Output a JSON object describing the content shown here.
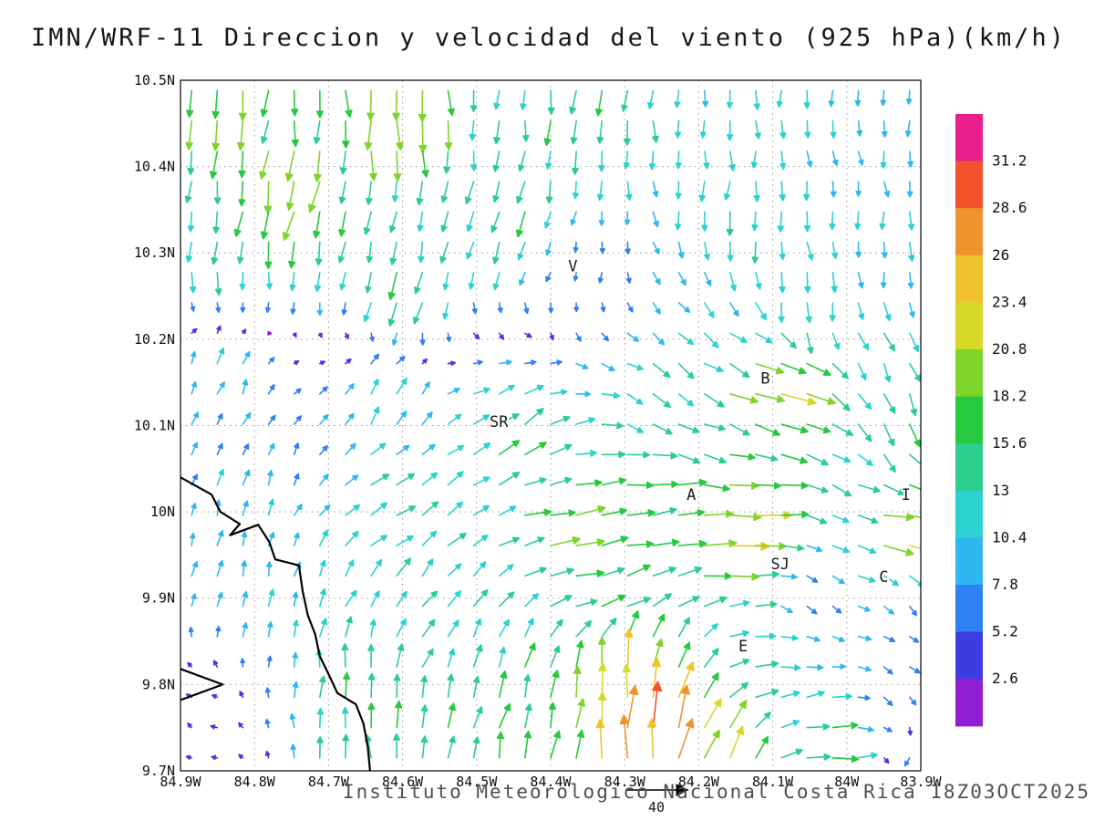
{
  "title": "IMN/WRF-11 Direccion y velocidad del viento (925 hPa)(km/h)",
  "footer": {
    "text": "Instituto Meteorologico Nacional Costa Rica 18Z03OCT2025"
  },
  "chart_data": {
    "type": "quiver",
    "title": "IMN/WRF-11 Direccion y velocidad del viento (925 hPa)(km/h)",
    "xlabel": "",
    "ylabel": "",
    "units": "km/h",
    "level": "925 hPa",
    "lon_range_w": [
      84.9,
      83.9
    ],
    "lat_range": [
      9.7,
      10.5
    ],
    "x_ticks": [
      {
        "label": "84.9W",
        "lon_w": 84.9
      },
      {
        "label": "84.8W",
        "lon_w": 84.8
      },
      {
        "label": "84.7W",
        "lon_w": 84.7
      },
      {
        "label": "84.6W",
        "lon_w": 84.6
      },
      {
        "label": "84.5W",
        "lon_w": 84.5
      },
      {
        "label": "84.4W",
        "lon_w": 84.4
      },
      {
        "label": "84.3W",
        "lon_w": 84.3
      },
      {
        "label": "84.2W",
        "lon_w": 84.2
      },
      {
        "label": "84.1W",
        "lon_w": 84.1
      },
      {
        "label": "84W",
        "lon_w": 84.0
      },
      {
        "label": "83.9W",
        "lon_w": 83.9
      }
    ],
    "y_ticks": [
      {
        "label": "10.5N",
        "lat": 10.5
      },
      {
        "label": "10.4N",
        "lat": 10.4
      },
      {
        "label": "10.3N",
        "lat": 10.3
      },
      {
        "label": "10.2N",
        "lat": 10.2
      },
      {
        "label": "10.1N",
        "lat": 10.1
      },
      {
        "label": "10N",
        "lat": 10.0
      },
      {
        "label": "9.9N",
        "lat": 9.9
      },
      {
        "label": "9.8N",
        "lat": 9.8
      },
      {
        "label": "9.7N",
        "lat": 9.7
      }
    ],
    "colorbar": {
      "levels": [
        2.6,
        5.2,
        7.8,
        10.4,
        13,
        15.6,
        18.2,
        20.8,
        23.4,
        26,
        28.6,
        31.2
      ],
      "labels_top_to_bottom": [
        "31.2",
        "28.6",
        "26",
        "23.4",
        "20.8",
        "18.2",
        "15.6",
        "13",
        "10.4",
        "7.8",
        "5.2",
        "2.6"
      ],
      "colors_low_to_high": [
        "#8f1fd0",
        "#3c3ce0",
        "#2f80f2",
        "#2fb8f0",
        "#2bd2cf",
        "#2bce8f",
        "#27c93f",
        "#7fd42a",
        "#d8d829",
        "#f0c22e",
        "#f0932c",
        "#f2522c",
        "#ea1f8f"
      ]
    },
    "reference_vector": {
      "label": "40",
      "speed_kmh": 40
    },
    "stations": [
      {
        "label": "V",
        "lon_w": 84.37,
        "lat": 10.285
      },
      {
        "label": "B",
        "lon_w": 84.11,
        "lat": 10.155
      },
      {
        "label": "SR",
        "lon_w": 84.47,
        "lat": 10.105
      },
      {
        "label": "A",
        "lon_w": 84.21,
        "lat": 10.02
      },
      {
        "label": "SJ",
        "lon_w": 84.09,
        "lat": 9.94
      },
      {
        "label": "C",
        "lon_w": 83.95,
        "lat": 9.925
      },
      {
        "label": "E",
        "lon_w": 84.14,
        "lat": 9.845
      },
      {
        "label": "I",
        "lon_w": 83.92,
        "lat": 10.02
      }
    ],
    "coastline": [
      [
        [
          84.9,
          10.04
        ],
        [
          84.858,
          10.02
        ],
        [
          84.846,
          10.0
        ],
        [
          84.82,
          9.986
        ],
        [
          84.833,
          9.973
        ],
        [
          84.795,
          9.985
        ],
        [
          84.78,
          9.965
        ],
        [
          84.772,
          9.945
        ],
        [
          84.74,
          9.938
        ],
        [
          84.735,
          9.908
        ],
        [
          84.728,
          9.88
        ],
        [
          84.718,
          9.858
        ],
        [
          84.712,
          9.833
        ],
        [
          84.7,
          9.812
        ],
        [
          84.688,
          9.79
        ],
        [
          84.663,
          9.777
        ],
        [
          84.653,
          9.755
        ],
        [
          84.647,
          9.728
        ],
        [
          84.644,
          9.7
        ]
      ],
      [
        [
          84.9,
          9.818
        ],
        [
          84.843,
          9.8
        ],
        [
          84.9,
          9.782
        ]
      ]
    ],
    "grid": {
      "nx": 29,
      "ny": 23,
      "lon_w_start": 84.885,
      "lon_w_end": 83.915,
      "lat_start": 9.715,
      "lat_end": 10.488
    },
    "wind_samples": [
      {
        "lon_w": 84.85,
        "lat": 10.47,
        "dir_to": 185,
        "speed": 18
      },
      {
        "lon_w": 84.6,
        "lat": 10.47,
        "dir_to": 178,
        "speed": 20
      },
      {
        "lon_w": 84.35,
        "lat": 10.47,
        "dir_to": 188,
        "speed": 16
      },
      {
        "lon_w": 84.1,
        "lat": 10.47,
        "dir_to": 182,
        "speed": 12
      },
      {
        "lon_w": 83.93,
        "lat": 10.47,
        "dir_to": 180,
        "speed": 9
      },
      {
        "lon_w": 84.75,
        "lat": 10.36,
        "dir_to": 192,
        "speed": 21
      },
      {
        "lon_w": 84.45,
        "lat": 10.34,
        "dir_to": 200,
        "speed": 16
      },
      {
        "lon_w": 84.15,
        "lat": 10.36,
        "dir_to": 185,
        "speed": 14
      },
      {
        "lon_w": 83.94,
        "lat": 10.33,
        "dir_to": 178,
        "speed": 11
      },
      {
        "lon_w": 84.85,
        "lat": 10.3,
        "dir_to": 185,
        "speed": 14
      },
      {
        "lon_w": 84.6,
        "lat": 10.26,
        "dir_to": 196,
        "speed": 18
      },
      {
        "lon_w": 84.38,
        "lat": 10.28,
        "dir_to": 205,
        "speed": 6
      },
      {
        "lon_w": 84.05,
        "lat": 10.25,
        "dir_to": 182,
        "speed": 13
      },
      {
        "lon_w": 84.85,
        "lat": 10.16,
        "dir_to": 20,
        "speed": 10
      },
      {
        "lon_w": 84.62,
        "lat": 10.13,
        "dir_to": 28,
        "speed": 13
      },
      {
        "lon_w": 84.45,
        "lat": 10.09,
        "dir_to": 55,
        "speed": 16
      },
      {
        "lon_w": 84.25,
        "lat": 10.13,
        "dir_to": 130,
        "speed": 14
      },
      {
        "lon_w": 84.1,
        "lat": 10.14,
        "dir_to": 110,
        "speed": 22
      },
      {
        "lon_w": 83.93,
        "lat": 10.12,
        "dir_to": 160,
        "speed": 15
      },
      {
        "lon_w": 84.82,
        "lat": 10.01,
        "dir_to": 15,
        "speed": 10
      },
      {
        "lon_w": 84.6,
        "lat": 9.99,
        "dir_to": 60,
        "speed": 15
      },
      {
        "lon_w": 84.38,
        "lat": 9.98,
        "dir_to": 85,
        "speed": 19
      },
      {
        "lon_w": 84.28,
        "lat": 10.02,
        "dir_to": 85,
        "speed": 18
      },
      {
        "lon_w": 84.15,
        "lat": 9.97,
        "dir_to": 92,
        "speed": 25
      },
      {
        "lon_w": 83.92,
        "lat": 9.97,
        "dir_to": 100,
        "speed": 22
      },
      {
        "lon_w": 84.82,
        "lat": 9.9,
        "dir_to": 8,
        "speed": 11
      },
      {
        "lon_w": 84.58,
        "lat": 9.9,
        "dir_to": 40,
        "speed": 13
      },
      {
        "lon_w": 84.33,
        "lat": 9.91,
        "dir_to": 80,
        "speed": 17
      },
      {
        "lon_w": 84.05,
        "lat": 9.89,
        "dir_to": 140,
        "speed": 7
      },
      {
        "lon_w": 83.92,
        "lat": 9.9,
        "dir_to": 150,
        "speed": 7
      },
      {
        "lon_w": 84.86,
        "lat": 9.79,
        "dir_to": 300,
        "speed": 4
      },
      {
        "lon_w": 84.66,
        "lat": 9.8,
        "dir_to": 3,
        "speed": 15
      },
      {
        "lon_w": 84.47,
        "lat": 9.79,
        "dir_to": 15,
        "speed": 15
      },
      {
        "lon_w": 84.31,
        "lat": 9.81,
        "dir_to": 355,
        "speed": 23
      },
      {
        "lon_w": 84.12,
        "lat": 9.82,
        "dir_to": 85,
        "speed": 15
      },
      {
        "lon_w": 83.94,
        "lat": 9.79,
        "dir_to": 130,
        "speed": 7
      },
      {
        "lon_w": 84.85,
        "lat": 9.72,
        "dir_to": 280,
        "speed": 4
      },
      {
        "lon_w": 84.63,
        "lat": 9.72,
        "dir_to": 358,
        "speed": 17
      },
      {
        "lon_w": 84.43,
        "lat": 9.72,
        "dir_to": 10,
        "speed": 18
      },
      {
        "lon_w": 84.29,
        "lat": 9.73,
        "dir_to": 0,
        "speed": 29
      },
      {
        "lon_w": 84.25,
        "lat": 9.75,
        "dir_to": 8,
        "speed": 30
      },
      {
        "lon_w": 84.17,
        "lat": 9.73,
        "dir_to": 30,
        "speed": 20
      },
      {
        "lon_w": 84.02,
        "lat": 9.73,
        "dir_to": 85,
        "speed": 17
      },
      {
        "lon_w": 83.91,
        "lat": 9.72,
        "dir_to": 210,
        "speed": 6
      }
    ]
  }
}
